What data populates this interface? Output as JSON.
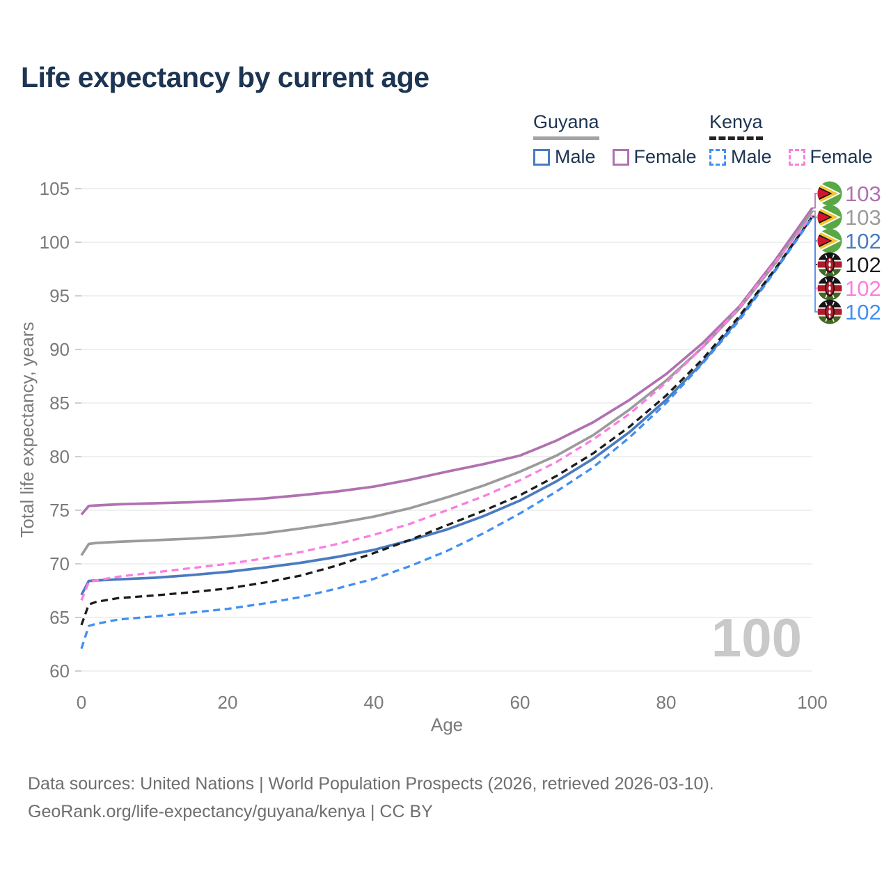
{
  "title": "Life expectancy by current age",
  "legend": {
    "groups": [
      {
        "country": "Guyana",
        "line_style": "solid",
        "underline_color": "#a3a3a3",
        "items": [
          {
            "label": "Male",
            "color": "#4a7bc0"
          },
          {
            "label": "Female",
            "color": "#b171b1"
          }
        ]
      },
      {
        "country": "Kenya",
        "line_style": "dashed",
        "underline_color": "#222222",
        "items": [
          {
            "label": "Male",
            "color": "#4190f2"
          },
          {
            "label": "Female",
            "color": "#fb7ee0"
          }
        ]
      }
    ]
  },
  "watermark": "100",
  "footer": {
    "line1": "Data sources: United Nations | World Population Prospects (2026, retrieved 2026-03-10).",
    "line2": "GeoRank.org/life-expectancy/guyana/kenya | CC BY"
  },
  "chart_data": {
    "type": "line",
    "title": "Life expectancy by current age",
    "xlabel": "Age",
    "ylabel": "Total life expectancy, years",
    "xlim": [
      0,
      100
    ],
    "ylim": [
      60,
      105
    ],
    "x_ticks": [
      0,
      20,
      40,
      60,
      80,
      100
    ],
    "y_ticks": [
      60,
      65,
      70,
      75,
      80,
      85,
      90,
      95,
      100,
      105
    ],
    "grid": "horizontal",
    "legend_position": "top-right",
    "x": [
      0,
      1,
      2,
      5,
      10,
      15,
      20,
      25,
      30,
      35,
      40,
      45,
      50,
      55,
      60,
      65,
      70,
      75,
      80,
      85,
      90,
      95,
      100
    ],
    "series": [
      {
        "name": "Guyana Female",
        "country": "guyana",
        "sex": "female",
        "color": "#b171b1",
        "dashed": false,
        "end_label": "103",
        "values": [
          74.6,
          75.4,
          75.45,
          75.55,
          75.65,
          75.75,
          75.9,
          76.1,
          76.4,
          76.75,
          77.2,
          77.85,
          78.6,
          79.3,
          80.1,
          81.5,
          83.2,
          85.3,
          87.7,
          90.6,
          94.0,
          98.4,
          103.2
        ]
      },
      {
        "name": "Guyana Both sexes",
        "country": "guyana",
        "sex": "both",
        "color": "#9b9b9b",
        "dashed": false,
        "end_label": "103",
        "values": [
          70.8,
          71.85,
          71.95,
          72.05,
          72.2,
          72.35,
          72.55,
          72.85,
          73.3,
          73.8,
          74.4,
          75.2,
          76.2,
          77.3,
          78.6,
          80.1,
          82.0,
          84.4,
          87.1,
          90.2,
          93.8,
          98.1,
          102.9
        ]
      },
      {
        "name": "Guyana Male",
        "country": "guyana",
        "sex": "male",
        "color": "#4a7bc0",
        "dashed": false,
        "end_label": "102",
        "values": [
          67.1,
          68.4,
          68.45,
          68.55,
          68.7,
          68.95,
          69.25,
          69.65,
          70.1,
          70.65,
          71.3,
          72.2,
          73.2,
          74.45,
          75.9,
          77.7,
          79.8,
          82.3,
          85.3,
          88.8,
          92.9,
          97.5,
          102.4
        ]
      },
      {
        "name": "Kenya Both sexes",
        "country": "kenya",
        "sex": "both",
        "color": "#1c1c1c",
        "dashed": true,
        "end_label": "102",
        "values": [
          64.3,
          66.2,
          66.45,
          66.8,
          67.05,
          67.35,
          67.7,
          68.25,
          68.9,
          69.85,
          71.0,
          72.25,
          73.6,
          74.95,
          76.4,
          78.2,
          80.3,
          82.8,
          85.7,
          89.1,
          93.1,
          97.6,
          102.4
        ]
      },
      {
        "name": "Kenya Female",
        "country": "kenya",
        "sex": "female",
        "color": "#fb7ee0",
        "dashed": true,
        "end_label": "102",
        "values": [
          66.6,
          68.3,
          68.45,
          68.8,
          69.2,
          69.6,
          70.0,
          70.5,
          71.1,
          71.85,
          72.7,
          73.75,
          75.0,
          76.3,
          77.8,
          79.5,
          81.6,
          84.0,
          86.9,
          90.2,
          93.9,
          98.2,
          102.5
        ]
      },
      {
        "name": "Kenya Male",
        "country": "kenya",
        "sex": "male",
        "color": "#4190f2",
        "dashed": true,
        "end_label": "102",
        "values": [
          62.1,
          64.2,
          64.4,
          64.8,
          65.1,
          65.45,
          65.8,
          66.3,
          66.9,
          67.7,
          68.6,
          69.8,
          71.2,
          72.85,
          74.7,
          76.75,
          79.0,
          81.8,
          85.0,
          88.7,
          92.7,
          97.4,
          102.3
        ]
      }
    ],
    "end_labels_row_order": [
      "Guyana Female",
      "Guyana Both sexes",
      "Guyana Male",
      "Kenya Both sexes",
      "Kenya Female",
      "Kenya Male"
    ]
  }
}
